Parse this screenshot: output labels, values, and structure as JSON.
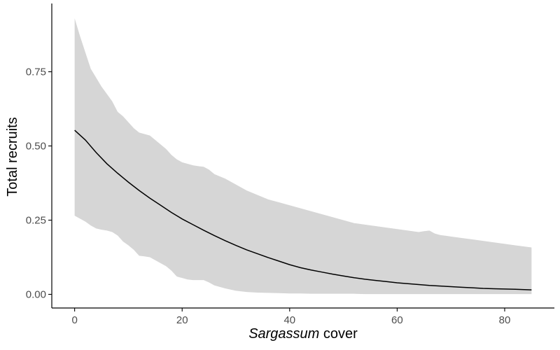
{
  "chart_data": {
    "type": "line",
    "xlabel_italic": "Sargassum",
    "xlabel_rest": " cover",
    "ylabel": "Total recruits",
    "xlim": [
      -4.25,
      89.25
    ],
    "ylim": [
      -0.046,
      0.98
    ],
    "x_ticks": [
      0,
      20,
      40,
      60,
      80
    ],
    "x_tick_labels": [
      "0",
      "20",
      "40",
      "60",
      "80"
    ],
    "y_ticks": [
      0,
      0.25,
      0.5,
      0.75
    ],
    "y_tick_labels": [
      "0.00",
      "0.25",
      "0.50",
      "0.75"
    ],
    "grid": false,
    "series": [
      {
        "x": [
          0,
          2,
          4,
          6,
          8,
          10,
          12,
          14,
          16,
          18,
          20,
          22,
          24,
          26,
          28,
          30,
          32,
          34,
          36,
          38,
          40,
          42,
          44,
          46,
          48,
          50,
          52,
          54,
          56,
          58,
          60,
          62,
          64,
          66,
          68,
          70,
          72,
          74,
          76,
          78,
          80,
          82,
          85
        ],
        "y": [
          0.553,
          0.52,
          0.478,
          0.44,
          0.408,
          0.378,
          0.35,
          0.324,
          0.3,
          0.276,
          0.254,
          0.235,
          0.216,
          0.198,
          0.181,
          0.165,
          0.15,
          0.137,
          0.124,
          0.112,
          0.1,
          0.09,
          0.082,
          0.075,
          0.068,
          0.062,
          0.056,
          0.051,
          0.047,
          0.043,
          0.039,
          0.036,
          0.033,
          0.03,
          0.028,
          0.026,
          0.024,
          0.022,
          0.02,
          0.019,
          0.018,
          0.017,
          0.015
        ],
        "color": "#000000"
      }
    ],
    "ribbon": {
      "x": [
        0,
        1,
        2,
        3,
        4,
        5,
        6,
        7,
        8,
        9,
        10,
        11,
        12,
        13,
        14,
        15,
        16,
        17,
        18,
        19,
        20,
        21,
        22,
        23,
        24,
        25,
        26,
        28,
        30,
        32,
        34,
        36,
        38,
        40,
        42,
        44,
        46,
        48,
        50,
        52,
        54,
        56,
        58,
        60,
        62,
        64,
        65,
        66,
        67,
        68,
        70,
        72,
        74,
        76,
        78,
        80,
        82,
        85
      ],
      "upper": [
        0.93,
        0.87,
        0.815,
        0.76,
        0.73,
        0.7,
        0.675,
        0.65,
        0.615,
        0.6,
        0.58,
        0.56,
        0.545,
        0.54,
        0.535,
        0.52,
        0.505,
        0.49,
        0.47,
        0.455,
        0.445,
        0.44,
        0.435,
        0.432,
        0.43,
        0.42,
        0.405,
        0.39,
        0.37,
        0.35,
        0.335,
        0.32,
        0.31,
        0.3,
        0.29,
        0.28,
        0.27,
        0.26,
        0.25,
        0.24,
        0.235,
        0.23,
        0.225,
        0.22,
        0.215,
        0.21,
        0.213,
        0.215,
        0.205,
        0.2,
        0.195,
        0.19,
        0.185,
        0.18,
        0.175,
        0.17,
        0.165,
        0.158
      ],
      "lower": [
        0.265,
        0.255,
        0.245,
        0.232,
        0.222,
        0.218,
        0.215,
        0.21,
        0.198,
        0.178,
        0.165,
        0.15,
        0.13,
        0.128,
        0.125,
        0.115,
        0.105,
        0.095,
        0.08,
        0.06,
        0.055,
        0.05,
        0.048,
        0.048,
        0.048,
        0.04,
        0.03,
        0.02,
        0.012,
        0.008,
        0.006,
        0.005,
        0.004,
        0.003,
        0.003,
        0.002,
        0.002,
        0.002,
        0.002,
        0.002,
        0.001,
        0.001,
        0.001,
        0.001,
        0.001,
        0.001,
        0.001,
        0.001,
        0.001,
        0.001,
        0.001,
        0.001,
        0.001,
        0.001,
        0.001,
        0.001,
        0.001,
        0.001
      ],
      "color": "#d6d6d6"
    },
    "colors": {
      "axis": "#000000",
      "tick_text": "#4d4d4d",
      "line": "#000000",
      "ribbon": "#d6d6d6"
    }
  }
}
